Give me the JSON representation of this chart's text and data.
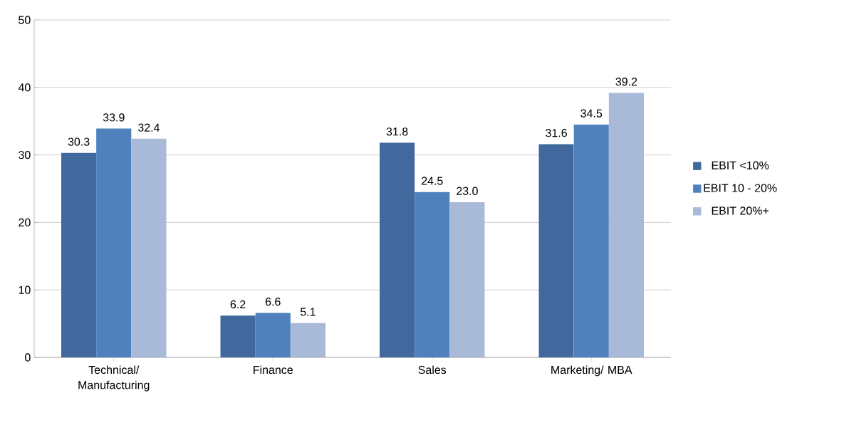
{
  "chart_data": {
    "type": "bar",
    "categories": [
      "Technical/ Manufacturing",
      "Finance",
      "Sales",
      "Marketing/ MBA"
    ],
    "series": [
      {
        "name": "EBIT <10%",
        "color": "#41699e",
        "values": [
          30.3,
          6.2,
          31.8,
          31.6
        ],
        "value_labels": [
          "30.3",
          "6.2",
          "31.8",
          "31.6"
        ]
      },
      {
        "name": "EBIT 10 - 20%",
        "color": "#4f81bd",
        "values": [
          33.9,
          6.6,
          24.5,
          34.5
        ],
        "value_labels": [
          "33.9",
          "6.6",
          "24.5",
          "34.5"
        ]
      },
      {
        "name": "EBIT 20%+",
        "color": "#a9bad8",
        "values": [
          32.4,
          5.1,
          23.0,
          39.2
        ],
        "value_labels": [
          "32.4",
          "5.1",
          "23.0",
          "39.2"
        ]
      }
    ],
    "ylim": [
      0,
      50
    ],
    "yticks": [
      0,
      10,
      20,
      30,
      40,
      50
    ],
    "grid": "y",
    "legend": "right"
  }
}
